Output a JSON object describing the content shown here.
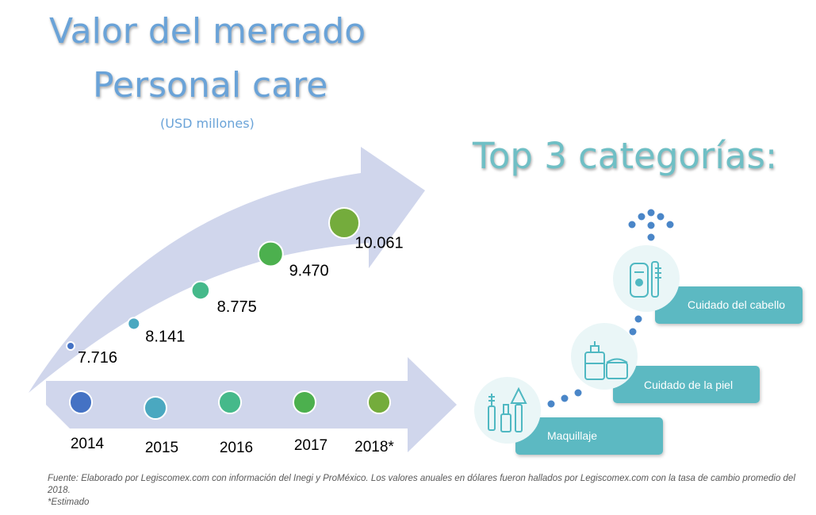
{
  "title": {
    "line1": "Valor del mercado",
    "line2": "Personal care",
    "unit": "(USD millones)"
  },
  "top_title": "Top 3 categorías:",
  "categories": [
    {
      "label": "Maquillaje",
      "icon": "makeup-icon"
    },
    {
      "label": "Cuidado de la piel",
      "icon": "skincare-icon"
    },
    {
      "label": "Cuidado del cabello",
      "icon": "haircare-icon"
    }
  ],
  "footnote": {
    "source": "Fuente: Elaborado por Legiscomex.com con información del Inegi y ProMéxico. Los valores anuales en dólares fueron hallados por Legiscomex.com con la tasa de cambio promedio del 2018.",
    "note": "*Estimado"
  },
  "colors": {
    "arrow": "#d0d6ec",
    "title": "#6aa3d8",
    "teal": "#5bb9c2",
    "dots": "#4a86c8"
  },
  "chart_data": {
    "type": "scatter",
    "categories": [
      "2014",
      "2015",
      "2016",
      "2017",
      "2018*"
    ],
    "values": [
      7716,
      8141,
      8775,
      9470,
      10061
    ],
    "value_labels": [
      "7.716",
      "8.141",
      "8.775",
      "9.470",
      "10.061"
    ],
    "colors": [
      "#4472c4",
      "#4aa8c0",
      "#45b98a",
      "#4cb04e",
      "#74ac3c"
    ],
    "title": "Valor del mercado Personal care",
    "ylabel": "(USD millones)"
  }
}
